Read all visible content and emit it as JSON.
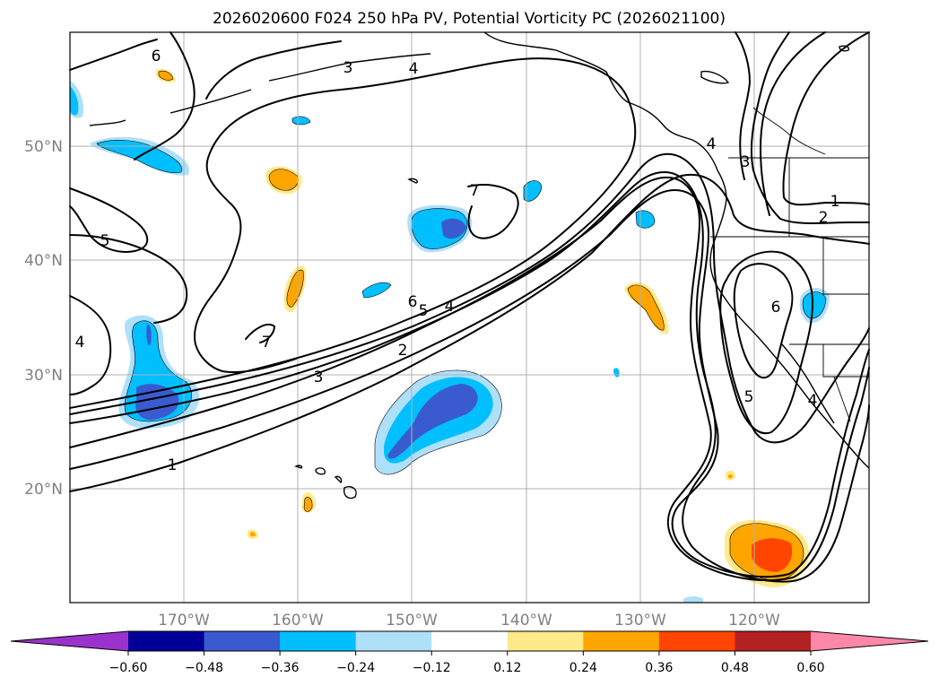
{
  "title": "2026020600 F024 250 hPa PV, Potential Vorticity PC (2026021100)",
  "latitude_labels": [
    "50°N",
    "40°N",
    "30°N",
    "20°N"
  ],
  "longitude_labels": [
    "170°W",
    "160°W",
    "150°W",
    "140°W",
    "130°W",
    "120°W"
  ],
  "colorbar": {
    "ticks": [
      "−0.60",
      "−0.48",
      "−0.36",
      "−0.24",
      "−0.12",
      "0.12",
      "0.24",
      "0.36",
      "0.48",
      "0.60"
    ],
    "colors": [
      "#9933cc",
      "#000099",
      "#3a5bd0",
      "#00bfff",
      "#aee0fa",
      "#ffffff",
      "#ffe98a",
      "#ffa500",
      "#ff4500",
      "#b22222",
      "#ff88aa"
    ]
  },
  "chart_data": {
    "type": "map",
    "projection": "cylindrical",
    "lon_range": [
      -180,
      -110
    ],
    "lat_range": [
      10,
      60
    ],
    "field": "250 hPa Potential Vorticity principal component (shaded) with PV contours",
    "contour_labels": [
      "6",
      "3",
      "4",
      "5",
      "7",
      "6",
      "5",
      "4",
      "2",
      "3",
      "1",
      "7",
      "4",
      "4",
      "3",
      "1",
      "2",
      "6",
      "5",
      "4"
    ]
  }
}
